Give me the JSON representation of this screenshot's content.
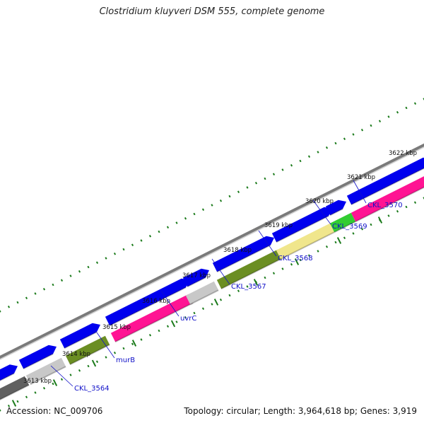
{
  "title": "Clostridium kluyveri DSM 555, complete genome",
  "footer": {
    "accession": "Accession: NC_009706",
    "summary": "Topology: circular; Length: 3,964,618 bp; Genes: 3,919"
  },
  "colors": {
    "backbone": "#8c8c8c",
    "forward_cds": "#0000ee",
    "gene_label": "#1010c8",
    "tick": "#1a7a1a",
    "tick_label": "#111111"
  },
  "ticks": [
    {
      "label": "3613 kbp"
    },
    {
      "label": "3614 kbp"
    },
    {
      "label": "3615 kbp"
    },
    {
      "label": "3616 kbp"
    },
    {
      "label": "3617 kbp"
    },
    {
      "label": "3618 kbp"
    },
    {
      "label": "3619 kbp"
    },
    {
      "label": "3620 kbp"
    },
    {
      "label": "3621 kbp"
    },
    {
      "label": "3622 kbp"
    }
  ],
  "gene_labels": [
    {
      "label": "CKL_3564"
    },
    {
      "label": "murB"
    },
    {
      "label": "uvrC"
    },
    {
      "label": "CKL_3567"
    },
    {
      "label": "CKL_3568"
    },
    {
      "label": "CKL_3569"
    },
    {
      "label": "CKL_3570"
    }
  ],
  "reverse_features": [
    {
      "color": "#606060"
    },
    {
      "color": "#c8c8c8"
    },
    {
      "color": "#6b8e23"
    },
    {
      "color": "#ff1493"
    },
    {
      "color": "#c8c8c8"
    },
    {
      "color": "#6b8e23"
    },
    {
      "color": "#f0e68c"
    },
    {
      "color": "#32cd32"
    },
    {
      "color": "#ff1493"
    }
  ]
}
